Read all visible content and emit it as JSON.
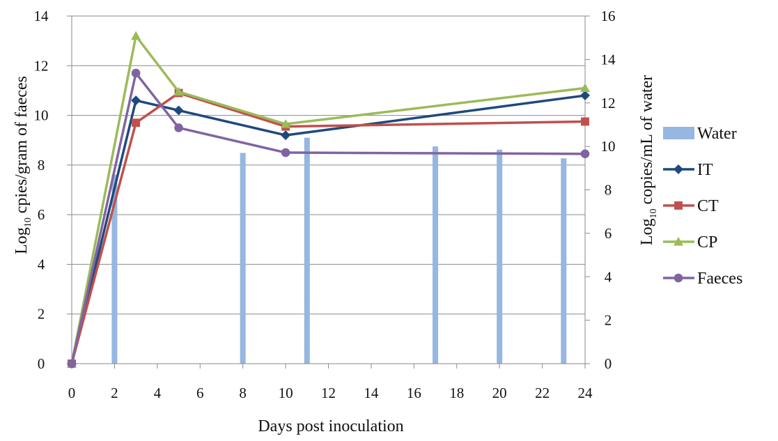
{
  "chart_data": {
    "type": "line",
    "x_axis": {
      "label": "Days post inoculation",
      "min": 0,
      "max": 24,
      "ticks": [
        "0",
        "2",
        "4",
        "6",
        "8",
        "10",
        "12",
        "14",
        "16",
        "18",
        "20",
        "22",
        "24"
      ]
    },
    "y_axis_left": {
      "label_main": "Log",
      "label_sub": "10",
      "label_rest": " cpies/gram of faeces",
      "min": 0,
      "max": 14,
      "ticks": [
        "0",
        "2",
        "4",
        "6",
        "8",
        "10",
        "12",
        "14"
      ]
    },
    "y_axis_right": {
      "label_main": "Log",
      "label_sub": "10",
      "label_rest": " copies/mL of water",
      "min": 0,
      "max": 16,
      "ticks": [
        "0",
        "2",
        "4",
        "6",
        "8",
        "10",
        "12",
        "14",
        "16"
      ]
    },
    "grid": true,
    "legend_position": "right",
    "bars": {
      "name": "Water",
      "axis": "right",
      "color": "#95b7e0",
      "points": [
        {
          "x": 2,
          "y": 8.7
        },
        {
          "x": 8,
          "y": 9.7
        },
        {
          "x": 11,
          "y": 10.4
        },
        {
          "x": 17,
          "y": 10.0
        },
        {
          "x": 20,
          "y": 9.85
        },
        {
          "x": 23,
          "y": 9.45
        }
      ]
    },
    "series": [
      {
        "name": "IT",
        "marker": "diamond",
        "color": "#1f497d",
        "x": [
          0,
          3,
          5,
          10,
          24
        ],
        "values": [
          0,
          10.6,
          10.2,
          9.2,
          10.8
        ]
      },
      {
        "name": "CT",
        "marker": "square",
        "color": "#c0504d",
        "x": [
          0,
          3,
          5,
          10,
          24
        ],
        "values": [
          0,
          9.7,
          10.9,
          9.55,
          9.75
        ]
      },
      {
        "name": "CP",
        "marker": "triangle",
        "color": "#9bbb59",
        "x": [
          0,
          3,
          5,
          10,
          24
        ],
        "values": [
          0,
          13.2,
          10.95,
          9.65,
          11.1
        ]
      },
      {
        "name": "Faeces",
        "marker": "circle",
        "color": "#8064a2",
        "x": [
          0,
          3,
          5,
          10,
          24
        ],
        "values": [
          0,
          11.7,
          9.5,
          8.5,
          8.45
        ]
      }
    ]
  }
}
